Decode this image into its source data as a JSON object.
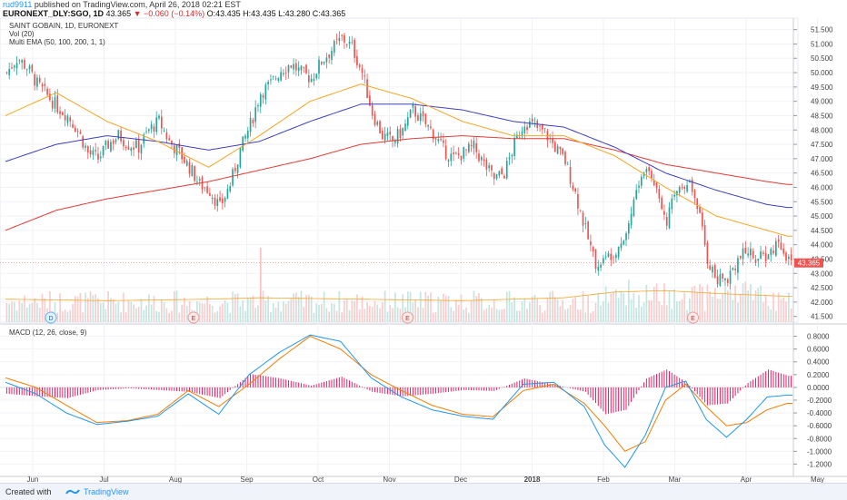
{
  "header": {
    "user": "rud9911",
    "published": "published on TradingView.com, April 26, 2018 02:21 EST",
    "symbol": "EURONEXT_DLY:SGO, 1D",
    "last": "43.365",
    "change_arrow": "▼",
    "change": "−0.060 (−0.14%)",
    "ohlc": "O:43.435 H:43.435 L:43.280 C:43.365"
  },
  "legend": {
    "name": "SAINT GOBAIN, 1D, EURONEXT",
    "vol": "Vol (20)",
    "ema": "Multi EMA (50, 100, 200, 1, 1)",
    "macd": "MACD (12, 26, close, 9)"
  },
  "footer": {
    "created": "Created with",
    "brand": "TradingView"
  },
  "colors": {
    "up": "#26a69a",
    "down": "#ef5350",
    "ema50": "#f5a623",
    "ema100": "#3f3fbf",
    "ema200": "#e53935",
    "macd": "#2196f3",
    "signal": "#f57c00",
    "hist": "#e91e63",
    "vol_ma": "#f5a623",
    "price_badge": "#ef5350"
  },
  "chart_data": {
    "type": "candlestick",
    "price_axis": {
      "ticks": [
        "41.500",
        "42.000",
        "42.500",
        "43.000",
        "43.500",
        "44.000",
        "44.500",
        "45.000",
        "45.500",
        "46.000",
        "46.500",
        "47.000",
        "47.500",
        "48.000",
        "48.500",
        "49.000",
        "49.500",
        "50.000",
        "50.500",
        "51.000",
        "51.500"
      ],
      "range": [
        41.3,
        51.9
      ],
      "last_price": "43.365"
    },
    "macd_axis": {
      "ticks": [
        "0.8000",
        "0.6000",
        "0.4000",
        "0.2000",
        "0.0000",
        "-0.2000",
        "-0.4000",
        "-0.6000",
        "-0.8000",
        "-1.0000",
        "-1.2000"
      ],
      "range": [
        -1.35,
        0.95
      ]
    },
    "time_axis": [
      "Jun",
      "Jul",
      "Aug",
      "Sep",
      "Oct",
      "Nov",
      "Dec",
      "2018",
      "Feb",
      "Mar",
      "Apr",
      "May"
    ],
    "markers": [
      {
        "label": "D",
        "x": "Jun"
      },
      {
        "label": "E",
        "x": "Aug"
      },
      {
        "label": "E",
        "x": "Nov"
      },
      {
        "label": "E",
        "x": "Mar"
      }
    ],
    "close_path": [
      [
        0,
        50.0
      ],
      [
        4,
        50.5
      ],
      [
        8,
        50.2
      ],
      [
        12,
        49.6
      ],
      [
        16,
        49.2
      ],
      [
        20,
        48.8
      ],
      [
        24,
        48.5
      ],
      [
        28,
        48.0
      ],
      [
        32,
        47.2
      ],
      [
        36,
        47.0
      ],
      [
        40,
        47.5
      ],
      [
        44,
        47.8
      ],
      [
        48,
        47.5
      ],
      [
        52,
        47.4
      ],
      [
        56,
        48.0
      ],
      [
        60,
        48.3
      ],
      [
        64,
        47.6
      ],
      [
        68,
        47.2
      ],
      [
        72,
        46.7
      ],
      [
        76,
        46.1
      ],
      [
        80,
        45.9
      ],
      [
        84,
        45.3
      ],
      [
        88,
        46.1
      ],
      [
        92,
        47.3
      ],
      [
        96,
        48.2
      ],
      [
        100,
        49.3
      ],
      [
        104,
        49.6
      ],
      [
        108,
        50.1
      ],
      [
        112,
        50.3
      ],
      [
        116,
        50.0
      ],
      [
        120,
        49.8
      ],
      [
        124,
        50.4
      ],
      [
        128,
        50.8
      ],
      [
        132,
        51.2
      ],
      [
        136,
        50.9
      ],
      [
        140,
        50.0
      ],
      [
        144,
        48.6
      ],
      [
        148,
        47.8
      ],
      [
        152,
        47.6
      ],
      [
        156,
        48.0
      ],
      [
        160,
        48.7
      ],
      [
        164,
        48.3
      ],
      [
        168,
        47.9
      ],
      [
        172,
        47.3
      ],
      [
        176,
        47.0
      ],
      [
        180,
        47.2
      ],
      [
        184,
        47.4
      ],
      [
        188,
        46.8
      ],
      [
        192,
        46.3
      ],
      [
        196,
        46.5
      ],
      [
        200,
        47.5
      ],
      [
        204,
        48.3
      ],
      [
        208,
        48.1
      ],
      [
        212,
        47.9
      ],
      [
        216,
        47.4
      ],
      [
        220,
        46.9
      ],
      [
        224,
        45.8
      ],
      [
        228,
        44.5
      ],
      [
        232,
        43.3
      ],
      [
        236,
        43.5
      ],
      [
        240,
        43.9
      ],
      [
        244,
        44.4
      ],
      [
        248,
        45.9
      ],
      [
        252,
        46.7
      ],
      [
        256,
        46.0
      ],
      [
        260,
        44.9
      ],
      [
        264,
        45.9
      ],
      [
        268,
        46.3
      ],
      [
        272,
        45.4
      ],
      [
        276,
        43.5
      ],
      [
        280,
        42.7
      ],
      [
        284,
        42.9
      ],
      [
        288,
        43.5
      ],
      [
        292,
        43.8
      ],
      [
        296,
        43.5
      ],
      [
        300,
        43.6
      ],
      [
        304,
        44.2
      ],
      [
        308,
        43.4
      ]
    ],
    "ema50": [
      [
        0,
        48.5
      ],
      [
        20,
        49.3
      ],
      [
        40,
        48.3
      ],
      [
        60,
        47.6
      ],
      [
        80,
        46.7
      ],
      [
        100,
        47.8
      ],
      [
        120,
        49.0
      ],
      [
        140,
        49.6
      ],
      [
        160,
        49.1
      ],
      [
        180,
        48.3
      ],
      [
        200,
        47.8
      ],
      [
        220,
        47.8
      ],
      [
        240,
        47.1
      ],
      [
        260,
        46.0
      ],
      [
        280,
        45.0
      ],
      [
        300,
        44.5
      ],
      [
        308,
        44.3
      ]
    ],
    "ema100": [
      [
        0,
        46.9
      ],
      [
        20,
        47.5
      ],
      [
        40,
        47.8
      ],
      [
        60,
        47.6
      ],
      [
        80,
        47.3
      ],
      [
        100,
        47.6
      ],
      [
        120,
        48.3
      ],
      [
        140,
        48.9
      ],
      [
        160,
        48.9
      ],
      [
        180,
        48.7
      ],
      [
        200,
        48.3
      ],
      [
        220,
        48.1
      ],
      [
        240,
        47.4
      ],
      [
        260,
        46.5
      ],
      [
        280,
        45.9
      ],
      [
        300,
        45.4
      ],
      [
        308,
        45.3
      ]
    ],
    "ema200": [
      [
        0,
        44.5
      ],
      [
        20,
        45.2
      ],
      [
        40,
        45.6
      ],
      [
        60,
        45.9
      ],
      [
        80,
        46.2
      ],
      [
        100,
        46.6
      ],
      [
        120,
        47.0
      ],
      [
        140,
        47.5
      ],
      [
        160,
        47.7
      ],
      [
        180,
        47.8
      ],
      [
        200,
        47.7
      ],
      [
        220,
        47.7
      ],
      [
        240,
        47.3
      ],
      [
        260,
        46.8
      ],
      [
        280,
        46.5
      ],
      [
        300,
        46.2
      ],
      [
        308,
        46.1
      ]
    ],
    "macd_line": [
      [
        0,
        0.08
      ],
      [
        12,
        -0.1
      ],
      [
        24,
        -0.4
      ],
      [
        36,
        -0.58
      ],
      [
        48,
        -0.53
      ],
      [
        60,
        -0.45
      ],
      [
        72,
        -0.1
      ],
      [
        84,
        -0.42
      ],
      [
        96,
        0.2
      ],
      [
        108,
        0.55
      ],
      [
        120,
        0.82
      ],
      [
        132,
        0.72
      ],
      [
        144,
        0.15
      ],
      [
        156,
        -0.15
      ],
      [
        168,
        -0.35
      ],
      [
        180,
        -0.45
      ],
      [
        192,
        -0.5
      ],
      [
        204,
        0.05
      ],
      [
        216,
        0.08
      ],
      [
        228,
        -0.3
      ],
      [
        236,
        -0.9
      ],
      [
        244,
        -1.25
      ],
      [
        252,
        -0.75
      ],
      [
        260,
        0.0
      ],
      [
        268,
        0.1
      ],
      [
        276,
        -0.5
      ],
      [
        284,
        -0.78
      ],
      [
        292,
        -0.5
      ],
      [
        300,
        -0.15
      ],
      [
        308,
        -0.12
      ]
    ],
    "signal_line": [
      [
        0,
        0.15
      ],
      [
        12,
        0.0
      ],
      [
        24,
        -0.28
      ],
      [
        36,
        -0.55
      ],
      [
        48,
        -0.52
      ],
      [
        60,
        -0.42
      ],
      [
        72,
        -0.05
      ],
      [
        84,
        -0.3
      ],
      [
        96,
        0.05
      ],
      [
        108,
        0.45
      ],
      [
        120,
        0.8
      ],
      [
        132,
        0.6
      ],
      [
        144,
        0.2
      ],
      [
        156,
        -0.05
      ],
      [
        168,
        -0.28
      ],
      [
        180,
        -0.42
      ],
      [
        192,
        -0.46
      ],
      [
        204,
        -0.05
      ],
      [
        216,
        0.05
      ],
      [
        228,
        -0.25
      ],
      [
        236,
        -0.6
      ],
      [
        244,
        -1.0
      ],
      [
        252,
        -0.85
      ],
      [
        260,
        -0.2
      ],
      [
        268,
        0.05
      ],
      [
        276,
        -0.3
      ],
      [
        284,
        -0.6
      ],
      [
        292,
        -0.55
      ],
      [
        300,
        -0.35
      ],
      [
        308,
        -0.25
      ]
    ],
    "volume_ma": [
      [
        0,
        42.1
      ],
      [
        40,
        42.05
      ],
      [
        80,
        42.1
      ],
      [
        100,
        42.15
      ],
      [
        140,
        42.1
      ],
      [
        180,
        42.05
      ],
      [
        220,
        42.15
      ],
      [
        240,
        42.35
      ],
      [
        260,
        42.4
      ],
      [
        280,
        42.3
      ],
      [
        308,
        42.2
      ]
    ]
  }
}
